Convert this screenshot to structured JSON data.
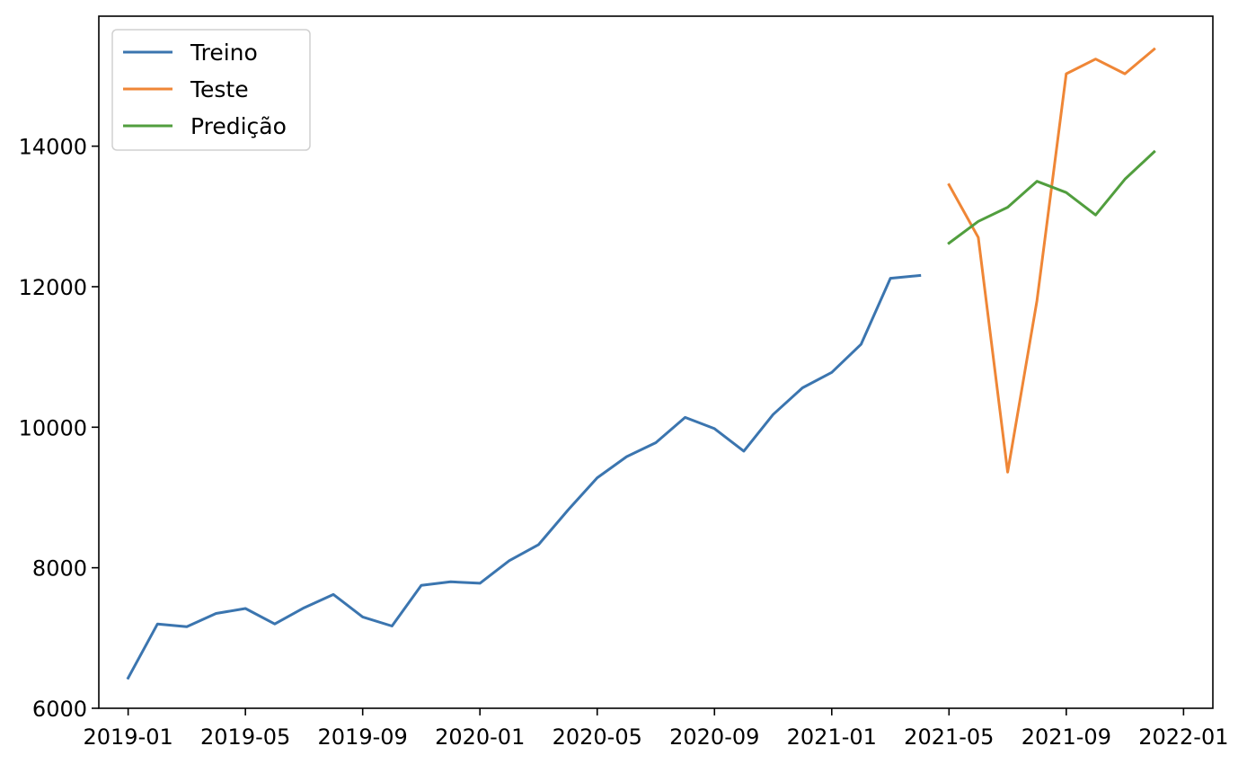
{
  "chart_data": {
    "type": "line",
    "title": "",
    "xlabel": "",
    "ylabel": "",
    "grid": false,
    "legend_position": "upper-left",
    "xlim": [
      "2018-12",
      "2022-02"
    ],
    "ylim": [
      6000,
      15850
    ],
    "x_ticks": [
      "2019-01",
      "2019-05",
      "2019-09",
      "2020-01",
      "2020-05",
      "2020-09",
      "2021-01",
      "2021-05",
      "2021-09",
      "2022-01"
    ],
    "y_ticks": [
      6000,
      8000,
      10000,
      12000,
      14000
    ],
    "series": [
      {
        "name": "Treino",
        "color": "#3b75af",
        "x": [
          "2019-01",
          "2019-02",
          "2019-03",
          "2019-04",
          "2019-05",
          "2019-06",
          "2019-07",
          "2019-08",
          "2019-09",
          "2019-10",
          "2019-11",
          "2019-12",
          "2020-01",
          "2020-02",
          "2020-03",
          "2020-04",
          "2020-05",
          "2020-06",
          "2020-07",
          "2020-08",
          "2020-09",
          "2020-10",
          "2020-11",
          "2020-12",
          "2021-01",
          "2021-02",
          "2021-03",
          "2021-04"
        ],
        "values": [
          6430,
          7200,
          7160,
          7350,
          7420,
          7200,
          7430,
          7620,
          7300,
          7170,
          7750,
          7800,
          7780,
          8100,
          8330,
          8820,
          9280,
          9580,
          9780,
          10140,
          9980,
          9660,
          10180,
          10560,
          10780,
          11180,
          12120,
          12160
        ]
      },
      {
        "name": "Teste",
        "color": "#ef8636",
        "x": [
          "2021-05",
          "2021-06",
          "2021-07",
          "2021-08",
          "2021-09",
          "2021-10",
          "2021-11",
          "2021-12"
        ],
        "values": [
          13450,
          12700,
          9360,
          11800,
          15030,
          15240,
          15030,
          15380
        ]
      },
      {
        "name": "Predição",
        "color": "#519e3e",
        "x": [
          "2021-05",
          "2021-06",
          "2021-07",
          "2021-08",
          "2021-09",
          "2021-10",
          "2021-11",
          "2021-12"
        ],
        "values": [
          12620,
          12930,
          13130,
          13500,
          13340,
          13020,
          13530,
          13920
        ]
      }
    ]
  }
}
